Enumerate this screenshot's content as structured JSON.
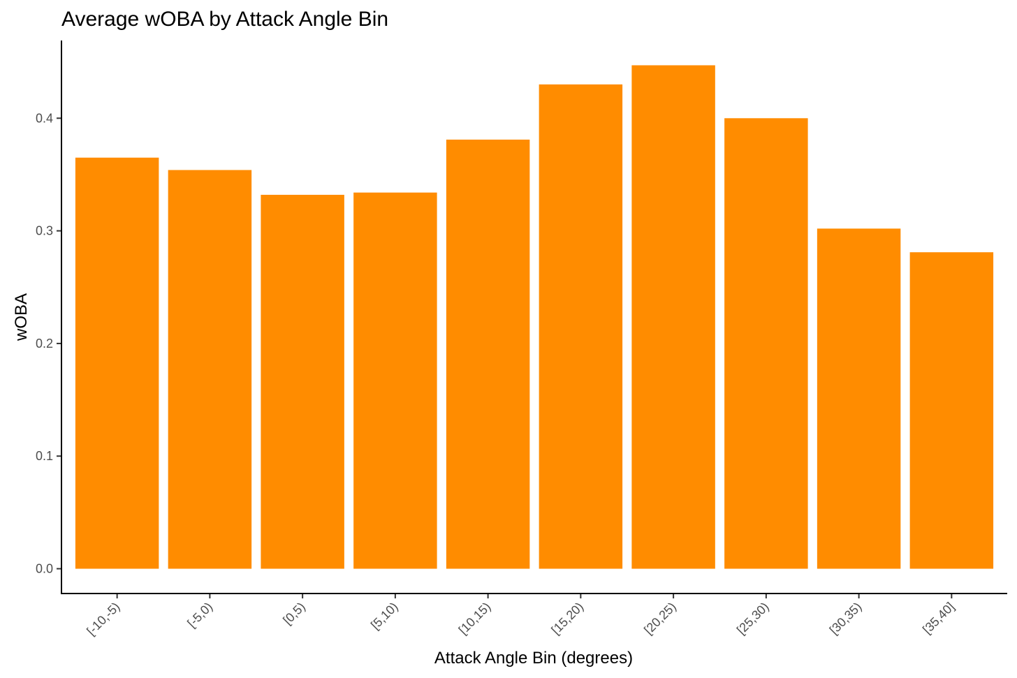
{
  "chart_data": {
    "type": "bar",
    "title": "Average wOBA by Attack Angle Bin",
    "xlabel": "Attack Angle Bin (degrees)",
    "ylabel": "wOBA",
    "categories": [
      "[-10,-5)",
      "[-5,0)",
      "[0,5)",
      "[5,10)",
      "[10,15)",
      "[15,20)",
      "[20,25)",
      "[25,30)",
      "[30,35)",
      "[35,40]"
    ],
    "values": [
      0.365,
      0.354,
      0.332,
      0.334,
      0.381,
      0.43,
      0.447,
      0.4,
      0.302,
      0.281
    ],
    "y_ticks": [
      "0.0",
      "0.1",
      "0.2",
      "0.3",
      "0.4"
    ],
    "ylim": [
      -0.022,
      0.469
    ],
    "grid": false,
    "legend": "none",
    "bar_color": "#FF8C00"
  }
}
